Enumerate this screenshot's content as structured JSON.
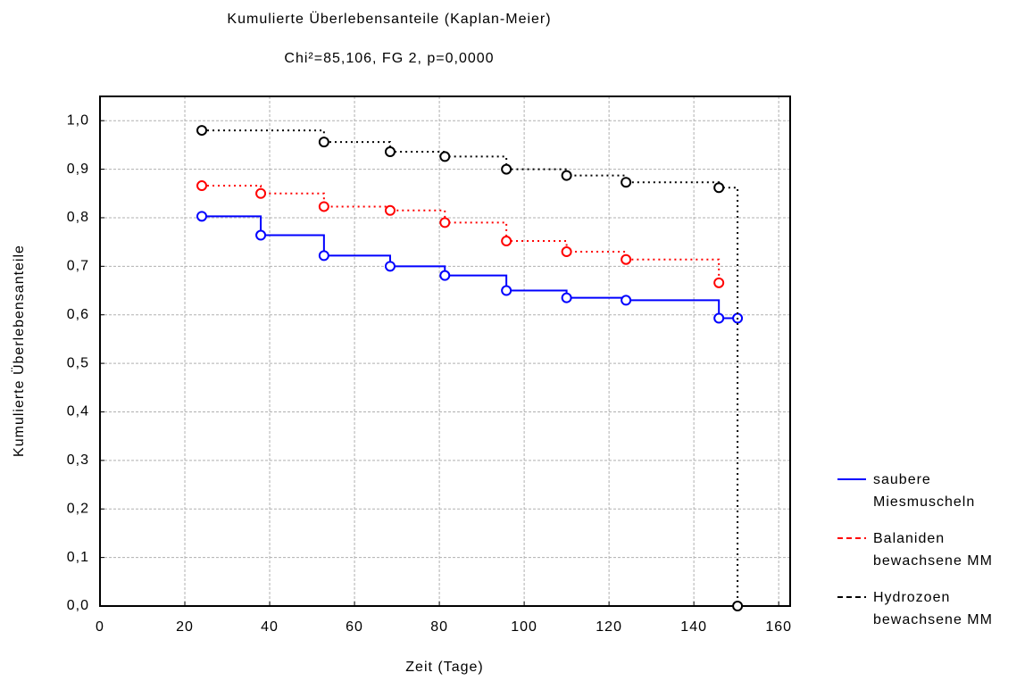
{
  "chart_data": {
    "type": "step",
    "title": "Kumulierte Überlebensanteile (Kaplan-Meier)",
    "subtitle": "Chi²=85,106, FG 2, p=0,0000",
    "x_label": "Zeit (Tage)",
    "y_label": "Kumulierte Überlebensanteile",
    "xlim": [
      0,
      162.7
    ],
    "ylim": [
      0,
      1.05
    ],
    "xticks": [
      0,
      20,
      40,
      60,
      80,
      100,
      120,
      140,
      160
    ],
    "yticks": [
      {
        "value": 0,
        "label": "0,0"
      },
      {
        "value": 0.1,
        "label": "0,1"
      },
      {
        "value": 0.2,
        "label": "0,2"
      },
      {
        "value": 0.3,
        "label": "0,3"
      },
      {
        "value": 0.4,
        "label": "0,4"
      },
      {
        "value": 0.5,
        "label": "0,5"
      },
      {
        "value": 0.6,
        "label": "0,6"
      },
      {
        "value": 0.7,
        "label": "0,7"
      },
      {
        "value": 0.8,
        "label": "0,8"
      },
      {
        "value": 0.9,
        "label": "0,9"
      },
      {
        "value": 1,
        "label": "1,0"
      }
    ],
    "grid": true,
    "legend": "right",
    "series": [
      {
        "name": "saubere Miesmuscheln",
        "color": "#0000ff",
        "line_style": "solid",
        "x": [
          24,
          37.9,
          52.8,
          68.4,
          81.3,
          95.8,
          110,
          124,
          145.9,
          150.3
        ],
        "values": [
          0.803,
          0.764,
          0.722,
          0.7,
          0.681,
          0.65,
          0.635,
          0.63,
          0.593,
          0.593
        ]
      },
      {
        "name": "Balaniden bewachsene MM",
        "color": "#ff0000",
        "line_style": "dotted",
        "x": [
          24,
          37.9,
          52.8,
          68.4,
          81.3,
          95.8,
          110,
          124,
          145.9
        ],
        "values": [
          0.866,
          0.85,
          0.823,
          0.815,
          0.79,
          0.752,
          0.73,
          0.714,
          0.666
        ]
      },
      {
        "name": "Hydrozoen bewachsene MM",
        "color": "#000000",
        "line_style": "dotted",
        "x": [
          24,
          52.8,
          68.4,
          81.3,
          95.8,
          110,
          124,
          145.9,
          150.3
        ],
        "values": [
          0.98,
          0.956,
          0.936,
          0.926,
          0.9,
          0.887,
          0.873,
          0.862,
          0
        ]
      }
    ]
  }
}
